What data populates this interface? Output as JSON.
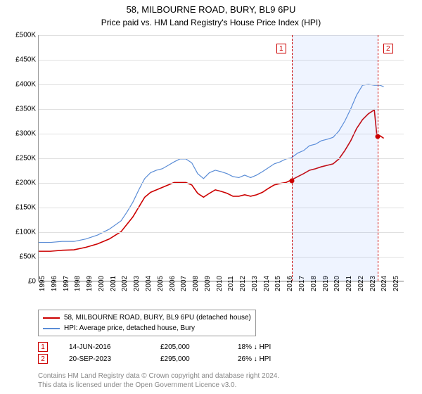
{
  "title": "58, MILBOURNE ROAD, BURY, BL9 6PU",
  "subtitle": "Price paid vs. HM Land Registry's House Price Index (HPI)",
  "chart": {
    "type": "line",
    "x_min": 1995,
    "x_max": 2026,
    "y_min": 0,
    "y_max": 500000,
    "y_ticks": [
      0,
      50000,
      100000,
      150000,
      200000,
      250000,
      300000,
      350000,
      400000,
      450000,
      500000
    ],
    "y_tick_labels": [
      "£0",
      "£50K",
      "£100K",
      "£150K",
      "£200K",
      "£250K",
      "£300K",
      "£350K",
      "£400K",
      "£450K",
      "£500K"
    ],
    "x_ticks": [
      1995,
      1996,
      1997,
      1998,
      1999,
      2000,
      2001,
      2002,
      2003,
      2004,
      2005,
      2006,
      2007,
      2008,
      2009,
      2010,
      2011,
      2012,
      2013,
      2014,
      2015,
      2016,
      2017,
      2018,
      2019,
      2020,
      2021,
      2022,
      2023,
      2024,
      2025
    ],
    "grid_color": "#e0e0e0",
    "axis_color": "#999999",
    "background": "#ffffff",
    "shade_band": {
      "x_start": 2016.45,
      "x_end": 2023.72,
      "fill": "rgba(100,150,255,0.10)"
    },
    "series": [
      {
        "name": "58, MILBOURNE ROAD, BURY, BL9 6PU (detached house)",
        "color": "#cc0000",
        "width": 1.6,
        "data": [
          [
            1995,
            60000
          ],
          [
            1996,
            60000
          ],
          [
            1997,
            62000
          ],
          [
            1998,
            63000
          ],
          [
            1999,
            68000
          ],
          [
            2000,
            75000
          ],
          [
            2001,
            85000
          ],
          [
            2002,
            100000
          ],
          [
            2002.5,
            115000
          ],
          [
            2003,
            130000
          ],
          [
            2003.5,
            150000
          ],
          [
            2004,
            170000
          ],
          [
            2004.5,
            180000
          ],
          [
            2005,
            185000
          ],
          [
            2005.5,
            190000
          ],
          [
            2006,
            195000
          ],
          [
            2006.5,
            200000
          ],
          [
            2007,
            200000
          ],
          [
            2007.5,
            200000
          ],
          [
            2008,
            195000
          ],
          [
            2008.5,
            178000
          ],
          [
            2009,
            170000
          ],
          [
            2009.5,
            178000
          ],
          [
            2010,
            185000
          ],
          [
            2010.5,
            182000
          ],
          [
            2011,
            178000
          ],
          [
            2011.5,
            172000
          ],
          [
            2012,
            172000
          ],
          [
            2012.5,
            175000
          ],
          [
            2013,
            172000
          ],
          [
            2013.5,
            175000
          ],
          [
            2014,
            180000
          ],
          [
            2014.5,
            188000
          ],
          [
            2015,
            195000
          ],
          [
            2015.5,
            198000
          ],
          [
            2016,
            200000
          ],
          [
            2016.45,
            205000
          ],
          [
            2017,
            212000
          ],
          [
            2017.5,
            218000
          ],
          [
            2018,
            225000
          ],
          [
            2018.5,
            228000
          ],
          [
            2019,
            232000
          ],
          [
            2019.5,
            235000
          ],
          [
            2020,
            238000
          ],
          [
            2020.5,
            248000
          ],
          [
            2021,
            265000
          ],
          [
            2021.5,
            285000
          ],
          [
            2022,
            310000
          ],
          [
            2022.5,
            328000
          ],
          [
            2023,
            340000
          ],
          [
            2023.5,
            348000
          ],
          [
            2023.72,
            295000
          ],
          [
            2024,
            295000
          ],
          [
            2024.3,
            290000
          ]
        ]
      },
      {
        "name": "HPI: Average price, detached house, Bury",
        "color": "#5b8dd6",
        "width": 1.2,
        "data": [
          [
            1995,
            78000
          ],
          [
            1996,
            78000
          ],
          [
            1997,
            80000
          ],
          [
            1998,
            80000
          ],
          [
            1999,
            85000
          ],
          [
            2000,
            93000
          ],
          [
            2001,
            105000
          ],
          [
            2002,
            122000
          ],
          [
            2002.5,
            140000
          ],
          [
            2003,
            160000
          ],
          [
            2003.5,
            185000
          ],
          [
            2004,
            208000
          ],
          [
            2004.5,
            220000
          ],
          [
            2005,
            225000
          ],
          [
            2005.5,
            228000
          ],
          [
            2006,
            235000
          ],
          [
            2006.5,
            242000
          ],
          [
            2007,
            248000
          ],
          [
            2007.5,
            248000
          ],
          [
            2008,
            240000
          ],
          [
            2008.5,
            218000
          ],
          [
            2009,
            208000
          ],
          [
            2009.5,
            220000
          ],
          [
            2010,
            225000
          ],
          [
            2010.5,
            222000
          ],
          [
            2011,
            218000
          ],
          [
            2011.5,
            212000
          ],
          [
            2012,
            210000
          ],
          [
            2012.5,
            215000
          ],
          [
            2013,
            210000
          ],
          [
            2013.5,
            215000
          ],
          [
            2014,
            222000
          ],
          [
            2014.5,
            230000
          ],
          [
            2015,
            238000
          ],
          [
            2015.5,
            242000
          ],
          [
            2016,
            248000
          ],
          [
            2016.45,
            250000
          ],
          [
            2017,
            260000
          ],
          [
            2017.5,
            265000
          ],
          [
            2018,
            275000
          ],
          [
            2018.5,
            278000
          ],
          [
            2019,
            285000
          ],
          [
            2019.5,
            288000
          ],
          [
            2020,
            292000
          ],
          [
            2020.5,
            305000
          ],
          [
            2021,
            325000
          ],
          [
            2021.5,
            350000
          ],
          [
            2022,
            378000
          ],
          [
            2022.5,
            398000
          ],
          [
            2023,
            400000
          ],
          [
            2023.5,
            398000
          ],
          [
            2023.72,
            398000
          ],
          [
            2024,
            398000
          ],
          [
            2024.3,
            395000
          ]
        ]
      }
    ],
    "markers": [
      {
        "id": "1",
        "x": 2016.45,
        "y": 205000
      },
      {
        "id": "2",
        "x": 2023.72,
        "y": 295000
      }
    ]
  },
  "legend": {
    "series": [
      {
        "color": "#cc0000",
        "label": "58, MILBOURNE ROAD, BURY, BL9 6PU (detached house)"
      },
      {
        "color": "#5b8dd6",
        "label": "HPI: Average price, detached house, Bury"
      }
    ],
    "rows": [
      {
        "id": "1",
        "date": "14-JUN-2016",
        "price": "£205,000",
        "diff": "18% ↓ HPI"
      },
      {
        "id": "2",
        "date": "20-SEP-2023",
        "price": "£295,000",
        "diff": "26% ↓ HPI"
      }
    ]
  },
  "footnote": {
    "line1": "Contains HM Land Registry data © Crown copyright and database right 2024.",
    "line2": "This data is licensed under the Open Government Licence v3.0."
  }
}
